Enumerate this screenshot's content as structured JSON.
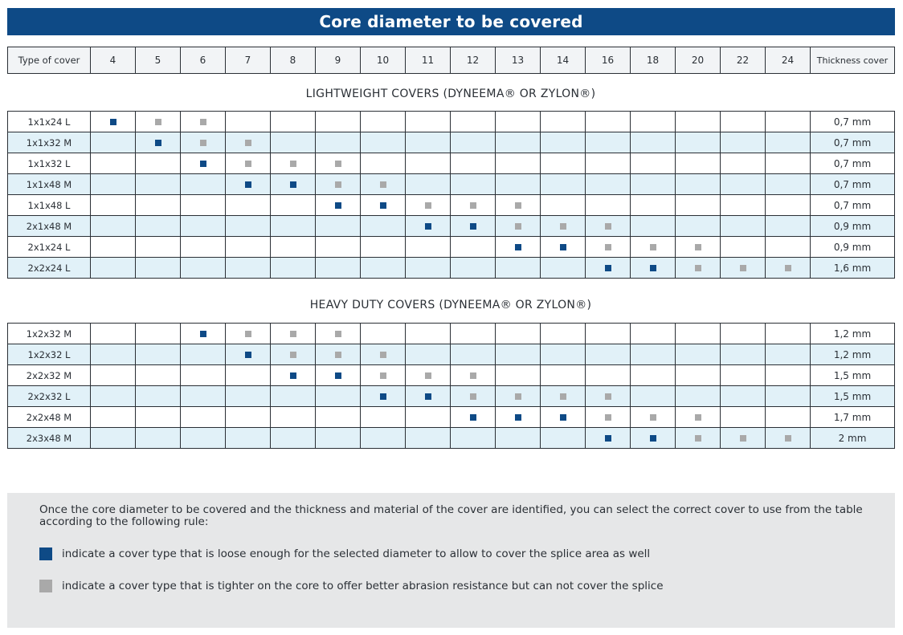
{
  "title": "Core diameter to be covered",
  "header": {
    "type_label": "Type of cover",
    "sizes": [
      "4",
      "5",
      "6",
      "7",
      "8",
      "9",
      "10",
      "11",
      "12",
      "13",
      "14",
      "16",
      "18",
      "20",
      "22",
      "24"
    ],
    "thickness_label": "Thickness cover"
  },
  "sections": [
    {
      "title": "LIGHTWEIGHT COVERS (DYNEEMA® OR ZYLON®)",
      "rows": [
        {
          "type": "1x1x24 L",
          "loose": [
            "4"
          ],
          "tight": [
            "5",
            "6"
          ],
          "thickness": "0,7 mm"
        },
        {
          "type": "1x1x32 M",
          "loose": [
            "5"
          ],
          "tight": [
            "6",
            "7"
          ],
          "thickness": "0,7 mm"
        },
        {
          "type": "1x1x32 L",
          "loose": [
            "6"
          ],
          "tight": [
            "7",
            "8",
            "9"
          ],
          "thickness": "0,7 mm"
        },
        {
          "type": "1x1x48 M",
          "loose": [
            "7",
            "8"
          ],
          "tight": [
            "9",
            "10"
          ],
          "thickness": "0,7 mm"
        },
        {
          "type": "1x1x48 L",
          "loose": [
            "9",
            "10"
          ],
          "tight": [
            "11",
            "12",
            "13"
          ],
          "thickness": "0,7 mm"
        },
        {
          "type": "2x1x48 M",
          "loose": [
            "11",
            "12"
          ],
          "tight": [
            "13",
            "14",
            "16"
          ],
          "thickness": "0,9 mm"
        },
        {
          "type": "2x1x24 L",
          "loose": [
            "13",
            "14"
          ],
          "tight": [
            "16",
            "18",
            "20"
          ],
          "thickness": "0,9 mm"
        },
        {
          "type": "2x2x24 L",
          "loose": [
            "16",
            "18"
          ],
          "tight": [
            "20",
            "22",
            "24"
          ],
          "thickness": "1,6 mm"
        }
      ]
    },
    {
      "title": "HEAVY DUTY COVERS (DYNEEMA® OR ZYLON®)",
      "rows": [
        {
          "type": "1x2x32 M",
          "loose": [
            "6"
          ],
          "tight": [
            "7",
            "8",
            "9"
          ],
          "thickness": "1,2 mm"
        },
        {
          "type": "1x2x32 L",
          "loose": [
            "7"
          ],
          "tight": [
            "8",
            "9",
            "10"
          ],
          "thickness": "1,2 mm"
        },
        {
          "type": "2x2x32 M",
          "loose": [
            "8",
            "9"
          ],
          "tight": [
            "10",
            "11",
            "12"
          ],
          "thickness": "1,5 mm"
        },
        {
          "type": "2x2x32 L",
          "loose": [
            "10",
            "11"
          ],
          "tight": [
            "12",
            "13",
            "14",
            "16"
          ],
          "thickness": "1,5 mm"
        },
        {
          "type": "2x2x48 M",
          "loose": [
            "12",
            "13",
            "14"
          ],
          "tight": [
            "16",
            "18",
            "20"
          ],
          "thickness": "1,7 mm"
        },
        {
          "type": "2x3x48 M",
          "loose": [
            "16",
            "18"
          ],
          "tight": [
            "20",
            "22",
            "24"
          ],
          "thickness": "2 mm"
        }
      ]
    }
  ],
  "notes": {
    "intro": "Once the core diameter to be covered and the thickness and material of the cover  are identified, you can select the correct cover to use from the table according to the following rule:",
    "loose_text": "indicate a cover type that is loose enough for the selected diameter to allow to cover the splice area as well",
    "tight_text": "indicate a cover type  that is tighter on the core to offer better abrasion resistance but can not cover the splice"
  },
  "colors": {
    "banner": "#0e4a86",
    "loose_marker": "#0e4a86",
    "tight_marker": "#a9a9a9",
    "stripe": "#e1f1f8",
    "notes_background": "#e6e7e8"
  }
}
